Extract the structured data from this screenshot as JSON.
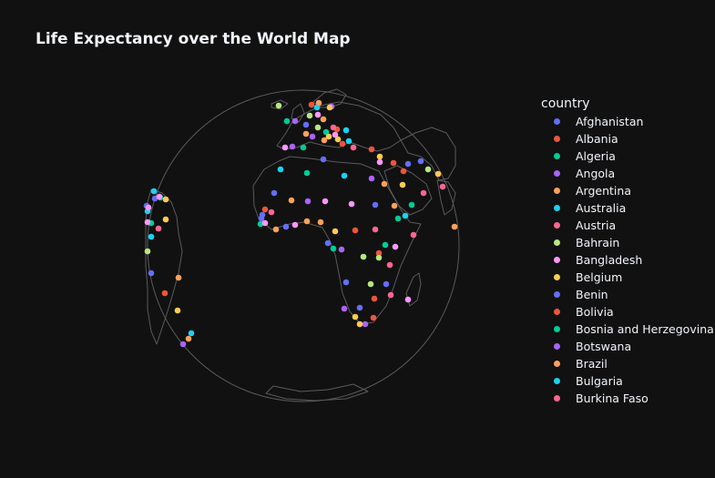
{
  "chart_data": {
    "type": "scatter_geo",
    "title": "Life Expectancy over the World Map",
    "projection": "orthographic",
    "legend_title": "country",
    "legend_position": "right",
    "background": "#111111",
    "coastline_color": "#5a5a5a",
    "palette": [
      "#636efa",
      "#EF553B",
      "#00cc96",
      "#ab63fa",
      "#FFA15A",
      "#19d3f3",
      "#FF6692",
      "#B6E880",
      "#FF97FF",
      "#FECB52"
    ],
    "legend": [
      {
        "name": "Afghanistan",
        "color": "#636efa"
      },
      {
        "name": "Albania",
        "color": "#EF553B"
      },
      {
        "name": "Algeria",
        "color": "#00cc96"
      },
      {
        "name": "Angola",
        "color": "#ab63fa"
      },
      {
        "name": "Argentina",
        "color": "#FFA15A"
      },
      {
        "name": "Australia",
        "color": "#19d3f3"
      },
      {
        "name": "Austria",
        "color": "#FF6692"
      },
      {
        "name": "Bahrain",
        "color": "#B6E880"
      },
      {
        "name": "Bangladesh",
        "color": "#FF97FF"
      },
      {
        "name": "Belgium",
        "color": "#FECB52"
      },
      {
        "name": "Benin",
        "color": "#636efa"
      },
      {
        "name": "Bolivia",
        "color": "#EF553B"
      },
      {
        "name": "Bosnia and Herzegovina",
        "color": "#00cc96"
      },
      {
        "name": "Botswana",
        "color": "#ab63fa"
      },
      {
        "name": "Brazil",
        "color": "#FFA15A"
      },
      {
        "name": "Bulgaria",
        "color": "#19d3f3"
      },
      {
        "name": "Burkina Faso",
        "color": "#FF6692"
      }
    ]
  }
}
